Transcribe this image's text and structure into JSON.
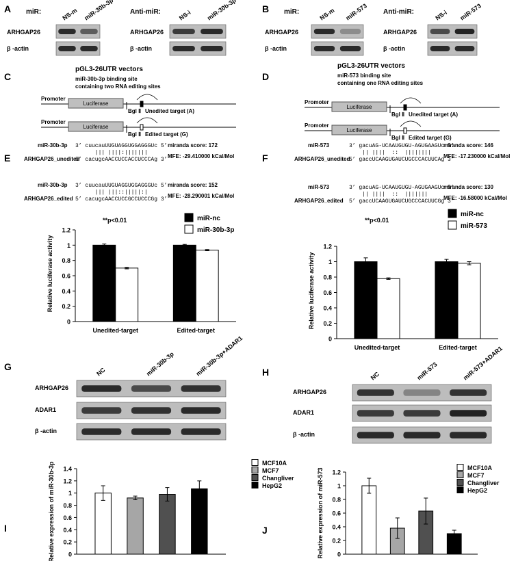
{
  "panels": {
    "A": {
      "label": "A",
      "mir": "miR:",
      "lanes": [
        "NS-m",
        "miR-30b-3p"
      ],
      "rows": [
        "ARHGAP26",
        "β -actin"
      ],
      "anti": "Anti-miR:",
      "anti_lanes": [
        "NS-i",
        "miR-30b-3p"
      ],
      "anti_rows": [
        "ARHGAP26",
        "β -actin"
      ]
    },
    "B": {
      "label": "B",
      "mir": "miR:",
      "lanes": [
        "NS-m",
        "miR-573"
      ],
      "rows": [
        "ARHGAP26",
        "β -actin"
      ],
      "anti": "Anti-miR:",
      "anti_lanes": [
        "NS-i",
        "miR-573"
      ],
      "anti_rows": [
        "ARHGAP26",
        "β -actin"
      ]
    },
    "C": {
      "label": "C",
      "title": "pGL3-26UTR vectors",
      "desc": [
        "miR-30b-3p binding site",
        "containing two RNA editing sites"
      ],
      "constructs": [
        {
          "promoter": "Promoter",
          "gene": "Luciferase",
          "site": "Bgl Ⅱ",
          "target": "Unedited target (A)"
        },
        {
          "promoter": "Promoter",
          "gene": "Luciferase",
          "site": "Bgl Ⅱ",
          "target": "Edited target (G)"
        }
      ]
    },
    "D": {
      "label": "D",
      "title": "pGL3-26UTR vectors",
      "desc": [
        "miR-573 binding site",
        "containing one RNA editing sites"
      ],
      "constructs": [
        {
          "promoter": "Promoter",
          "gene": "Luciferase",
          "site": "Bgl Ⅱ",
          "target": "Unedited target (A)"
        },
        {
          "promoter": "Promoter",
          "gene": "Luciferase",
          "site": "Bgl Ⅱ",
          "target": "Edited target (G)"
        }
      ]
    },
    "E": {
      "label": "E",
      "note": "**p<0.01",
      "alignments": [
        {
          "mirna": "miR-30b-3p",
          "target": "ARHGAP26_unedited",
          "mir_seq": "3’ cuucauUUGUAGGUGGAGGGUc 5’",
          "pairs": "      ||| ||||:|||||||  ",
          "target_seq": "5’ cacugcAACCUCCACCUCCCAg 3’",
          "score": "miranda score: 172",
          "mfe": "MFE: -29.410000 kCal/Mol"
        },
        {
          "mirna": "miR-30b-3p",
          "target": "ARHGAP26_edited",
          "mir_seq": "3’ cuucauUUGUAGGUGGAGGGUc 5’",
          "pairs": "      ||| |||::|||||:|  ",
          "target_seq": "5’ cacugcAACCUCCGCCUCCCGg 3’",
          "score": "miranda score: 152",
          "mfe": "MFE: -28.290001 kCal/Mol"
        }
      ]
    },
    "F": {
      "label": "F",
      "note": "**p<0.01",
      "alignments": [
        {
          "mirna": "miR-573",
          "target": "ARHGAP26_unedited",
          "mir_seq": "3’ gacuAG-UCAAUGUGU-AGUGAAGUc 5’",
          "pairs": "    || ||||  ::  ||||||||  ",
          "target_seq": "5’ gaccUCAAGUGAUCUGCCCACUUCAg 3’",
          "score": "miranda score: 146",
          "mfe": "MFE: -17.230000 kCal/Mol"
        },
        {
          "mirna": "miR-573",
          "target": "ARHGAP26_edited",
          "mir_seq": "3’ gacuAG-UCAAUGUGU-AGUGAAGUc 5’",
          "pairs": "    || ||||  ::  |||||||   ",
          "target_seq": "5’ gaccUCAAGUGAUCUGCCCACUUCGg 3’",
          "score": "miranda score: 130",
          "mfe": "MFE: -16.58000 kCal/Mol"
        }
      ]
    },
    "G": {
      "label": "G",
      "lanes": [
        "NC",
        "miR-30b-3p",
        "miR-30b-3p+ADAR1"
      ],
      "rows": [
        "ARHGAP26",
        "ADAR1",
        "β -actin"
      ]
    },
    "H": {
      "label": "H",
      "lanes": [
        "NC",
        "miR-573",
        "miR-573+ADAR1"
      ],
      "rows": [
        "ARHGAP26",
        "ADAR1",
        "β -actin"
      ]
    },
    "I": {
      "label": "I"
    },
    "J": {
      "label": "J"
    }
  },
  "chart_data": [
    {
      "type": "bar",
      "y_label": "Relative luciferase activity",
      "categories": [
        "Unedited-target",
        "Edited-target"
      ],
      "series": [
        {
          "name": "miR-nc",
          "color": "#000000",
          "values": [
            1,
            1
          ],
          "errors": [
            0.015,
            0.01
          ]
        },
        {
          "name": "miR-30b-3p",
          "color": "#ffffff",
          "values": [
            0.7,
            0.935
          ],
          "errors": [
            0.01,
            0.008
          ]
        }
      ],
      "ylim": [
        0,
        1.2
      ],
      "yticks": [
        0,
        0.2,
        0.4,
        0.6,
        0.8,
        1,
        1.2
      ]
    },
    {
      "type": "bar",
      "y_label": "Relative luciferase activity",
      "categories": [
        "Unedited-target",
        "Edited-target"
      ],
      "series": [
        {
          "name": "miR-nc",
          "color": "#000000",
          "values": [
            1,
            1
          ],
          "errors": [
            0.05,
            0.03
          ]
        },
        {
          "name": "miR-573",
          "color": "#ffffff",
          "values": [
            0.78,
            0.98
          ],
          "errors": [
            0.01,
            0.02
          ]
        }
      ],
      "ylim": [
        0,
        1.2
      ],
      "yticks": [
        0,
        0.2,
        0.4,
        0.6,
        0.8,
        1,
        1.2
      ]
    },
    {
      "type": "bar",
      "y_label": "Relative expression of miR-30b-3p",
      "categories": [
        null
      ],
      "series": [
        {
          "name": "MCF10A",
          "color": "#ffffff",
          "values": [
            1.0
          ],
          "errors": [
            0.12
          ]
        },
        {
          "name": "MCF7",
          "color": "#a6a6a6",
          "values": [
            0.92
          ],
          "errors": [
            0.03
          ]
        },
        {
          "name": "Changliver",
          "color": "#505050",
          "values": [
            0.98
          ],
          "errors": [
            0.11
          ]
        },
        {
          "name": "HepG2",
          "color": "#000000",
          "values": [
            1.07
          ],
          "errors": [
            0.13
          ]
        }
      ],
      "ylim": [
        0,
        1.4
      ],
      "yticks": [
        0,
        0.2,
        0.4,
        0.6,
        0.8,
        1,
        1.2,
        1.4
      ]
    },
    {
      "type": "bar",
      "y_label": "Relative expression of miR-573",
      "categories": [
        null
      ],
      "series": [
        {
          "name": "MCF10A",
          "color": "#ffffff",
          "values": [
            1.0
          ],
          "errors": [
            0.11
          ]
        },
        {
          "name": "MCF7",
          "color": "#a6a6a6",
          "values": [
            0.38
          ],
          "errors": [
            0.15
          ]
        },
        {
          "name": "Changliver",
          "color": "#505050",
          "values": [
            0.63
          ],
          "errors": [
            0.19
          ]
        },
        {
          "name": "HepG2",
          "color": "#000000",
          "values": [
            0.3
          ],
          "errors": [
            0.05
          ]
        }
      ],
      "ylim": [
        0,
        1.2
      ],
      "yticks": [
        0,
        0.2,
        0.4,
        0.6,
        0.8,
        1,
        1.2
      ]
    }
  ]
}
